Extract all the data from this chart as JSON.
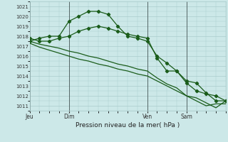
{
  "title": "Pression niveau de la mer( hPa )",
  "bg_color": "#cce8e8",
  "grid_color": "#aacccc",
  "line_color": "#1a5c1a",
  "ylim": [
    1010.5,
    1021.5
  ],
  "yticks": [
    1011,
    1012,
    1013,
    1014,
    1015,
    1016,
    1017,
    1018,
    1019,
    1020,
    1021
  ],
  "day_labels": [
    "Jeu",
    "Dim",
    "Ven",
    "Sam"
  ],
  "day_positions": [
    0,
    32,
    96,
    128
  ],
  "total_hours": 160,
  "series": [
    {
      "x": [
        0,
        8,
        16,
        24,
        32,
        40,
        48,
        56,
        64,
        72,
        80,
        88,
        96,
        104,
        112,
        120,
        128,
        136,
        144,
        152,
        160
      ],
      "y": [
        1017.5,
        1017.8,
        1018.0,
        1018.0,
        1019.5,
        1020.0,
        1020.5,
        1020.5,
        1020.2,
        1019.0,
        1018.0,
        1017.8,
        1017.5,
        1016.0,
        1015.3,
        1014.5,
        1013.5,
        1013.3,
        1012.3,
        1011.5,
        1011.5
      ],
      "markers": true
    },
    {
      "x": [
        0,
        8,
        16,
        24,
        32,
        40,
        48,
        56,
        64,
        72,
        80,
        88,
        96,
        104,
        112,
        120,
        128,
        136,
        144,
        152,
        160
      ],
      "y": [
        1017.8,
        1017.5,
        1017.5,
        1017.8,
        1018.0,
        1018.5,
        1018.8,
        1019.0,
        1018.8,
        1018.5,
        1018.2,
        1018.0,
        1017.8,
        1015.8,
        1014.5,
        1014.5,
        1013.3,
        1012.5,
        1012.2,
        1012.0,
        1011.5
      ],
      "markers": true
    },
    {
      "x": [
        0,
        8,
        16,
        24,
        32,
        40,
        48,
        56,
        64,
        72,
        80,
        88,
        96,
        104,
        112,
        120,
        128,
        136,
        144,
        152,
        160
      ],
      "y": [
        1017.3,
        1016.9,
        1016.6,
        1016.3,
        1016.0,
        1015.7,
        1015.5,
        1015.2,
        1015.0,
        1014.7,
        1014.5,
        1014.2,
        1014.0,
        1013.5,
        1013.0,
        1012.5,
        1012.0,
        1011.8,
        1011.3,
        1010.8,
        1011.5
      ],
      "markers": false
    },
    {
      "x": [
        0,
        8,
        16,
        24,
        32,
        40,
        48,
        56,
        64,
        72,
        80,
        88,
        96,
        104,
        112,
        120,
        128,
        136,
        144,
        152,
        160
      ],
      "y": [
        1017.5,
        1017.2,
        1017.0,
        1016.8,
        1016.5,
        1016.3,
        1016.0,
        1015.8,
        1015.5,
        1015.2,
        1015.0,
        1014.7,
        1014.5,
        1013.8,
        1013.2,
        1012.8,
        1012.0,
        1011.5,
        1011.0,
        1011.2,
        1011.2
      ],
      "markers": false
    }
  ]
}
